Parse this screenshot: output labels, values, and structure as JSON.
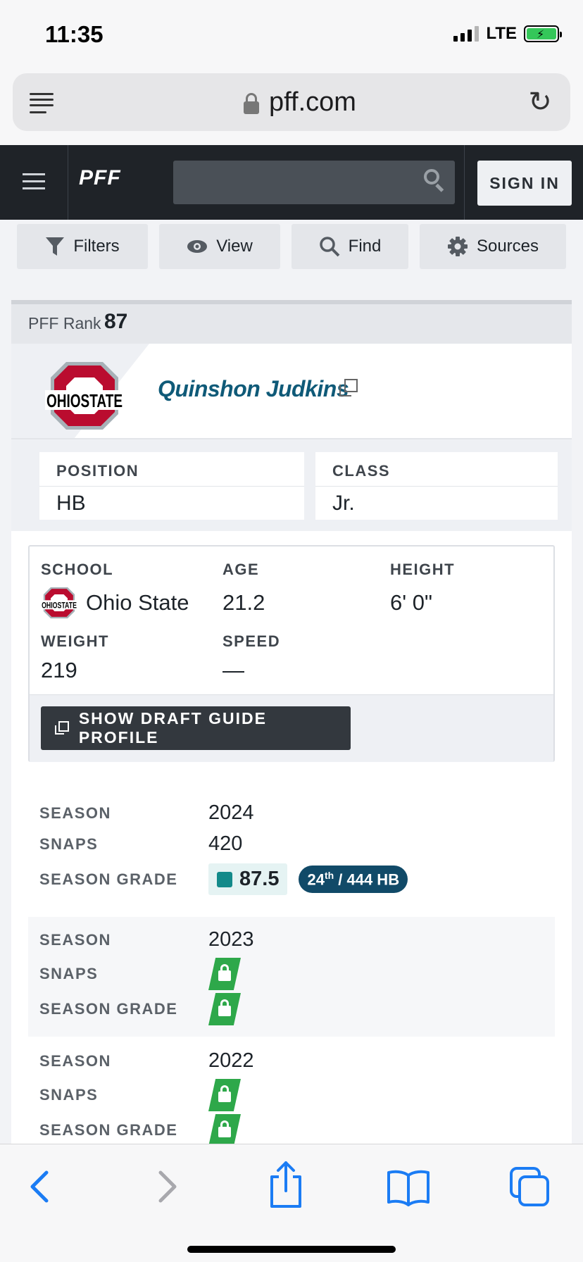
{
  "status_bar": {
    "time": "11:35",
    "network": "LTE"
  },
  "browser": {
    "url": "pff.com"
  },
  "header": {
    "logo": "PFF",
    "search_placeholder": "",
    "sign_in_label": "SIGN IN"
  },
  "toolbar": {
    "filters_label": "Filters",
    "view_label": "View",
    "find_label": "Find",
    "sources_label": "Sources"
  },
  "player": {
    "rank_label": "PFF Rank",
    "rank_value": "87",
    "name": "Quinshon Judkins",
    "position_label": "POSITION",
    "position": "HB",
    "class_label": "CLASS",
    "class": "Jr.",
    "school_label": "SCHOOL",
    "school": "Ohio State",
    "age_label": "AGE",
    "age": "21.2",
    "height_label": "HEIGHT",
    "height": "6' 0\"",
    "weight_label": "WEIGHT",
    "weight": "219",
    "speed_label": "SPEED",
    "speed": "—",
    "draft_button_label": "SHOW DRAFT GUIDE PROFILE",
    "colors": {
      "school_red": "#ba0c2f",
      "school_gray": "#a7b1b7",
      "name_blue": "#0f5a78"
    }
  },
  "seasons": [
    {
      "season_label": "SEASON",
      "season": "2024",
      "snaps_label": "SNAPS",
      "snaps": "420",
      "grade_label": "SEASON GRADE",
      "grade": "87.5",
      "rank_num": "24",
      "rank_suffix": "th",
      "rank_rest": " / 444 HB",
      "locked": false
    },
    {
      "season_label": "SEASON",
      "season": "2023",
      "snaps_label": "SNAPS",
      "grade_label": "SEASON GRADE",
      "locked": true
    },
    {
      "season_label": "SEASON",
      "season": "2022",
      "snaps_label": "SNAPS",
      "grade_label": "SEASON GRADE",
      "locked": true
    }
  ],
  "icons": {
    "reader": "reader-icon",
    "lock": "lock-icon",
    "reload": "reload-icon",
    "menu": "hamburger-icon",
    "search": "search-icon",
    "filter": "funnel-icon",
    "view": "eye-icon",
    "find": "magnifier-icon",
    "sources": "gear-icon",
    "back": "chevron-left-icon",
    "forward": "chevron-right-icon",
    "share": "share-icon",
    "bookmarks": "book-icon",
    "tabs": "tabs-icon"
  },
  "accent_colors": {
    "grade_teal": "#138a8a",
    "rank_pill": "#114a68",
    "locked_green": "#2ea84a",
    "safari_blue": "#1b7cf4"
  }
}
